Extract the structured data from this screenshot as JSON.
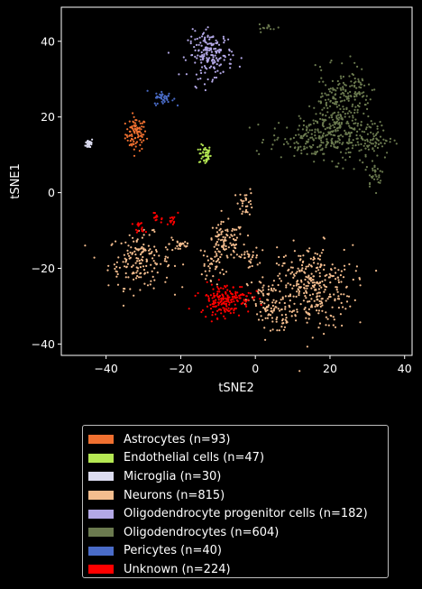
{
  "chart_data": {
    "type": "scatter",
    "title": "",
    "xlabel": "tSNE2",
    "ylabel": "tSNE1",
    "xlim": [
      -52,
      42
    ],
    "ylim": [
      -43,
      49
    ],
    "xticks": [
      -40,
      -20,
      0,
      20,
      40
    ],
    "yticks": [
      -40,
      -20,
      0,
      20,
      40
    ],
    "background": "#000000",
    "legend_position": "below",
    "series": [
      {
        "name": "Astrocytes (n=93)",
        "color": "#f07030",
        "count": 93,
        "clusters": [
          {
            "center": [
              -32,
              15.5
            ],
            "spread": [
              1.4,
              2.2
            ],
            "n": 93
          }
        ]
      },
      {
        "name": "Endothelial cells (n=47)",
        "color": "#b5e853",
        "count": 47,
        "clusters": [
          {
            "center": [
              -13.5,
              10
            ],
            "spread": [
              0.8,
              1.3
            ],
            "n": 47
          }
        ]
      },
      {
        "name": "Microglia (n=30)",
        "color": "#dcdcf0",
        "count": 30,
        "clusters": [
          {
            "center": [
              -44.5,
              13
            ],
            "spread": [
              0.5,
              0.7
            ],
            "n": 30
          }
        ]
      },
      {
        "name": "Neurons (n=815)",
        "color": "#f4bd8e",
        "count": 815,
        "clusters": [
          {
            "center": [
              -31,
              -18
            ],
            "spread": [
              4.2,
              3.5
            ],
            "n": 170
          },
          {
            "center": [
              -20,
              -13.5
            ],
            "spread": [
              1.5,
              1.2
            ],
            "n": 25
          },
          {
            "center": [
              -8,
              -13
            ],
            "spread": [
              2.5,
              2.5
            ],
            "n": 90
          },
          {
            "center": [
              -2.5,
              -2.5
            ],
            "spread": [
              1.0,
              1.8
            ],
            "n": 30
          },
          {
            "center": [
              15,
              -25
            ],
            "spread": [
              5.5,
              5.5
            ],
            "n": 330
          },
          {
            "center": [
              4,
              -30
            ],
            "spread": [
              3.0,
              4.0
            ],
            "n": 100
          },
          {
            "center": [
              -11,
              -19
            ],
            "spread": [
              1.5,
              2.0
            ],
            "n": 40
          },
          {
            "center": [
              -2,
              -17
            ],
            "spread": [
              1.5,
              1.5
            ],
            "n": 30
          }
        ]
      },
      {
        "name": "Oligodendrocyte progenitor cells (n=182)",
        "color": "#b3a8e6",
        "count": 182,
        "clusters": [
          {
            "center": [
              -12,
              36.5
            ],
            "spread": [
              3.0,
              3.0
            ],
            "n": 182
          }
        ]
      },
      {
        "name": "Oligodendrocytes (n=604)",
        "color": "#6b7a4f",
        "count": 604,
        "clusters": [
          {
            "center": [
              22,
              20
            ],
            "spread": [
              4.0,
              5.5
            ],
            "n": 250
          },
          {
            "center": [
              15,
              14
            ],
            "spread": [
              5.5,
              2.5
            ],
            "n": 160
          },
          {
            "center": [
              30,
              14
            ],
            "spread": [
              3.5,
              2.5
            ],
            "n": 90
          },
          {
            "center": [
              26,
              28
            ],
            "spread": [
              3.0,
              2.5
            ],
            "n": 60
          },
          {
            "center": [
              32,
              5
            ],
            "spread": [
              1.2,
              2.0
            ],
            "n": 30
          },
          {
            "center": [
              4,
              43.5
            ],
            "spread": [
              1.5,
              0.5
            ],
            "n": 14
          }
        ]
      },
      {
        "name": "Pericytes (n=40)",
        "color": "#4a6cc8",
        "count": 40,
        "clusters": [
          {
            "center": [
              -24.5,
              25
            ],
            "spread": [
              1.3,
              0.9
            ],
            "n": 40
          }
        ]
      },
      {
        "name": "Unknown (n=224)",
        "color": "#ff0000",
        "count": 224,
        "clusters": [
          {
            "center": [
              -8,
              -28
            ],
            "spread": [
              3.5,
              2.0
            ],
            "n": 175
          },
          {
            "center": [
              -31,
              -9.5
            ],
            "spread": [
              0.8,
              0.8
            ],
            "n": 15
          },
          {
            "center": [
              -26,
              -6.5
            ],
            "spread": [
              0.7,
              0.9
            ],
            "n": 12
          },
          {
            "center": [
              -22,
              -7.5
            ],
            "spread": [
              0.8,
              0.8
            ],
            "n": 12
          },
          {
            "center": [
              -10,
              -31
            ],
            "spread": [
              1.5,
              1.5
            ],
            "n": 10
          }
        ]
      }
    ]
  }
}
